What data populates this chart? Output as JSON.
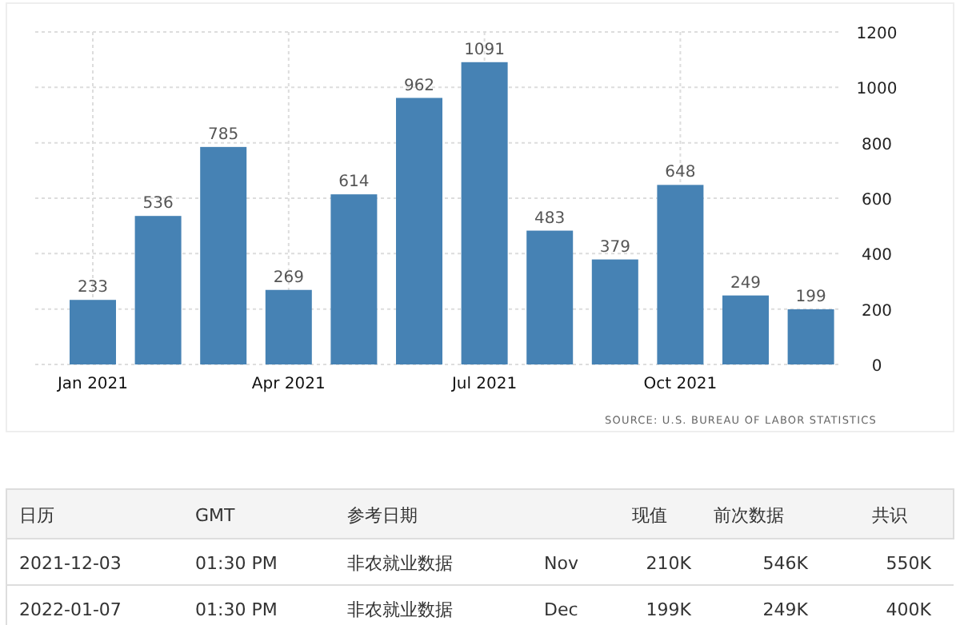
{
  "chart_data": [
    {
      "type": "bar",
      "categories": [
        "Jan 2021",
        null,
        null,
        "Apr 2021",
        null,
        null,
        "Jul 2021",
        null,
        null,
        "Oct 2021",
        null,
        null
      ],
      "values": [
        233,
        536,
        785,
        269,
        614,
        962,
        1091,
        483,
        379,
        648,
        249,
        199
      ],
      "color": "#4682b4",
      "ylim": [
        0,
        1200
      ],
      "yticks": [
        0,
        200,
        400,
        600,
        800,
        1000,
        1200
      ],
      "grid": true,
      "data_labels": true,
      "annotations": [
        "SOURCE: U.S. BUREAU OF LABOR STATISTICS"
      ]
    },
    {
      "type": "other",
      "categories": [
        "日历",
        "GMT",
        "参考日期",
        null,
        "现值",
        "前次数据",
        "共识"
      ],
      "annotations": [
        "2021-12-03",
        "01:30 PM",
        "非农就业数据",
        "Nov",
        "210K",
        "546K",
        "550K",
        "2022-01-07",
        "01:30 PM",
        "非农就业数据",
        "Dec",
        "199K",
        "249K",
        "400K"
      ]
    }
  ]
}
